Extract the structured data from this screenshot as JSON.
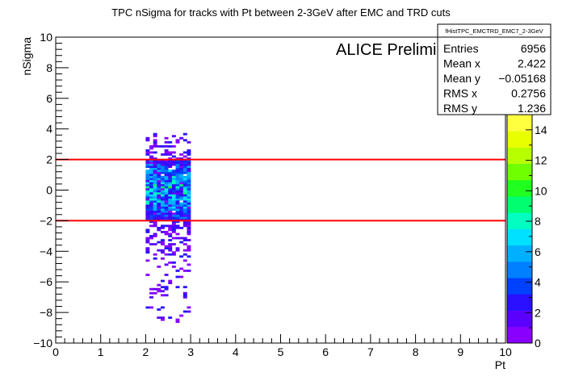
{
  "chart_data": {
    "type": "heatmap",
    "title": "TPC nSigma for tracks with Pt between 2-3GeV after EMC and TRD cuts",
    "xlabel": "Pt",
    "ylabel": "nSigma",
    "xlim": [
      0,
      10
    ],
    "ylim": [
      -10,
      10
    ],
    "x_ticks": [
      0,
      1,
      2,
      3,
      4,
      5,
      6,
      7,
      8,
      9,
      10
    ],
    "y_ticks": [
      -10,
      -8,
      -6,
      -4,
      -2,
      0,
      2,
      4,
      6,
      8,
      10
    ],
    "x_range_filled": [
      2,
      3
    ],
    "cut_lines": [
      {
        "y": 2,
        "color": "#ff0000"
      },
      {
        "y": -2,
        "color": "#ff0000"
      }
    ],
    "annotation": "ALICE Preliminary",
    "colorbar": {
      "min": 0,
      "max": 15,
      "ticks": [
        0,
        2,
        4,
        6,
        8,
        10,
        12,
        14
      ],
      "colors": [
        "#ffffff",
        "#8a00ff",
        "#5a00ff",
        "#2a10ff",
        "#0040ff",
        "#0080ff",
        "#00b0ff",
        "#00e0ff",
        "#00ffc0",
        "#00ff70",
        "#20ff20",
        "#70ff00",
        "#b8ff00",
        "#e8ff00",
        "#ffff40"
      ]
    },
    "stats": {
      "name": "fHistTPC_EMCTRD_EMC7_2-3GeV",
      "rows": [
        {
          "label": "Entries",
          "value": "6956"
        },
        {
          "label": "Mean x",
          "value": "2.422"
        },
        {
          "label": "Mean y",
          "value": "−0.05168"
        },
        {
          "label": "RMS x",
          "value": "0.2756"
        },
        {
          "label": "RMS y",
          "value": "1.236"
        }
      ]
    }
  }
}
